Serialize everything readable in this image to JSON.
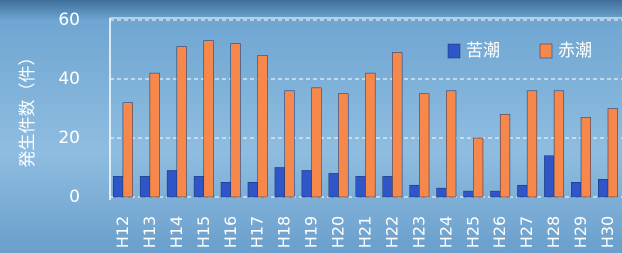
{
  "chart_data": {
    "type": "bar",
    "y_label": "発生件数（件）",
    "categories": [
      "H12",
      "H13",
      "H14",
      "H15",
      "H16",
      "H17",
      "H18",
      "H19",
      "H20",
      "H21",
      "H22",
      "H23",
      "H24",
      "H25",
      "H26",
      "H27",
      "H28",
      "H29",
      "H30"
    ],
    "series": [
      {
        "name": "苦潮",
        "color": "#2f56c8",
        "values": [
          7,
          7,
          9,
          7,
          5,
          5,
          10,
          9,
          8,
          7,
          7,
          4,
          3,
          2,
          2,
          4,
          14,
          5,
          6
        ]
      },
      {
        "name": "赤潮",
        "color": "#f5884a",
        "values": [
          32,
          42,
          51,
          53,
          52,
          48,
          36,
          37,
          35,
          42,
          49,
          35,
          36,
          20,
          28,
          36,
          36,
          27,
          30
        ]
      }
    ],
    "ylim": [
      0,
      60
    ],
    "yticks": [
      0,
      20,
      40,
      60
    ],
    "grid": true,
    "legend": "upper right"
  }
}
